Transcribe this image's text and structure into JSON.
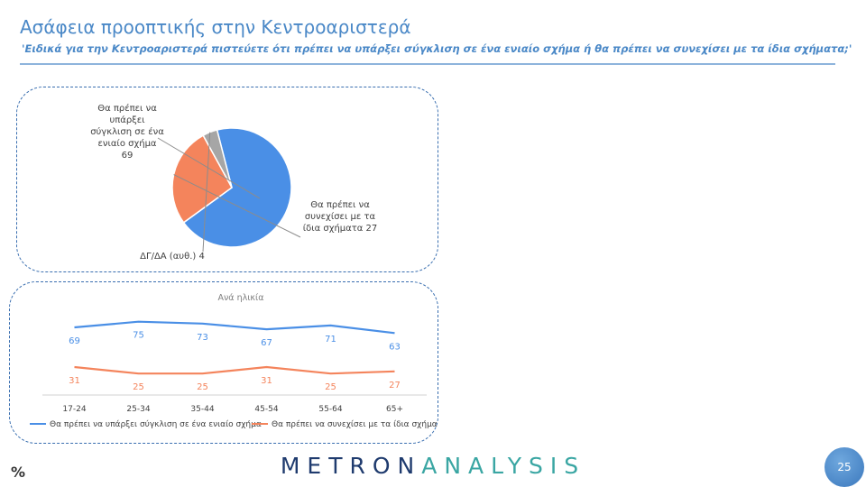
{
  "header": {
    "title": "Ασάφεια προοπτικής στην Κεντροαριστερά",
    "subtitle": "'Ειδικά για την Κεντροαριστερά πιστεύετε ότι πρέπει να υπάρξει σύγκλιση σε ένα ενιαίο σχήμα ή θα πρέπει να συνεχίσει με τα ίδια σχήματα;'"
  },
  "colors": {
    "blue": "#4a8fe6",
    "orange": "#f4845c",
    "gray": "#a6a6a6",
    "title_blue": "#4a88c7"
  },
  "chart_data": [
    {
      "type": "pie",
      "slices": [
        {
          "label_lines": [
            "Θα πρέπει να",
            "υπάρξει",
            "σύγκλιση σε ένα",
            "ενιαίο σχήμα",
            "69"
          ],
          "value": 69,
          "color": "#4a8fe6"
        },
        {
          "label_lines": [
            "Θα πρέπει να",
            "συνεχίσει με τα",
            "ίδια σχήματα 27"
          ],
          "value": 27,
          "color": "#f4845c"
        },
        {
          "label_lines": [
            "ΔΓ/ΔΑ (αυθ.) 4"
          ],
          "value": 4,
          "color": "#a6a6a6"
        }
      ]
    },
    {
      "type": "line",
      "title": "Ανά ηλικία",
      "categories": [
        "17-24",
        "25-34",
        "35-44",
        "45-54",
        "55-64",
        "65+"
      ],
      "series": [
        {
          "name": "Θα πρέπει να υπάρξει σύγκλιση σε ένα ενιαίο σχήμα",
          "values": [
            69,
            75,
            73,
            67,
            71,
            63
          ],
          "color": "#4a8fe6"
        },
        {
          "name": "Θα πρέπει να συνεχίσει με τα ίδια σχήματα",
          "values": [
            31,
            25,
            25,
            31,
            25,
            27
          ],
          "color": "#f4845c"
        }
      ],
      "ylim": [
        0,
        100
      ],
      "grid": false,
      "legend": "bottom"
    }
  ],
  "footer": {
    "brand_dark": "METRON",
    "brand_accent": "ANALYSIS",
    "symbol": "%",
    "page_number": "25"
  }
}
